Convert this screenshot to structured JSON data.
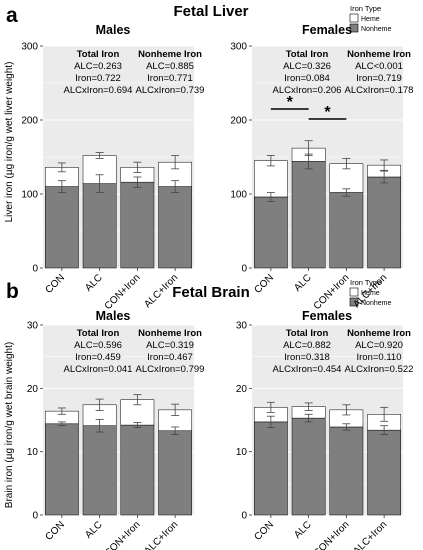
{
  "panels": [
    {
      "letter": "a",
      "title": "Fetal Liver",
      "legend": {
        "title": "Iron Type",
        "items": [
          "Heme",
          "Nonheme"
        ]
      },
      "ylabel": "Liver iron (µg iron/g wet liver weight)"
    },
    {
      "letter": "b",
      "title": "Fetal Brain",
      "legend": {
        "title": "Iron Type",
        "items": [
          "Heme",
          "Nonheme"
        ]
      },
      "ylabel": "Brain iron (µg iron/g wet brain weight)"
    }
  ],
  "colors": {
    "nonheme": "#7f7f7f",
    "heme": "#ffffff",
    "stroke": "#000000",
    "panel_bg": "#ebebeb",
    "grid": "#ffffff"
  },
  "chart_data": [
    {
      "type": "bar",
      "stacked": true,
      "organ": "Liver",
      "subtitle": "Males",
      "categories": [
        "CON",
        "ALC",
        "CON+Iron",
        "ALC+Iron"
      ],
      "series": [
        {
          "name": "Nonheme",
          "values": [
            110,
            114,
            116,
            110
          ],
          "errors": [
            8,
            12,
            7,
            8
          ]
        },
        {
          "name": "Heme",
          "values": [
            26,
            38,
            20,
            33
          ],
          "errors": [
            6,
            4,
            7,
            9
          ]
        }
      ],
      "ylim": [
        0,
        300
      ],
      "yticks": [
        "0",
        "100",
        "200",
        "300"
      ],
      "stats": [
        {
          "title": "Total Iron",
          "lines": [
            "ALC=0.263",
            "Iron=0.722",
            "ALCxIron=0.694"
          ]
        },
        {
          "title": "Nonheme Iron",
          "lines": [
            "ALC=0.885",
            "Iron=0.771",
            "ALCxIron=0.739"
          ]
        }
      ]
    },
    {
      "type": "bar",
      "stacked": true,
      "organ": "Liver",
      "subtitle": "Females",
      "categories": [
        "CON",
        "ALC",
        "CON+Iron",
        "ALC+Iron"
      ],
      "series": [
        {
          "name": "Nonheme",
          "values": [
            96,
            144,
            102,
            123
          ],
          "errors": [
            6,
            10,
            5,
            8
          ]
        },
        {
          "name": "Heme",
          "values": [
            49,
            18,
            39,
            16
          ],
          "errors": [
            7,
            10,
            7,
            7
          ]
        }
      ],
      "ylim": [
        0,
        300
      ],
      "yticks": [
        "0",
        "100",
        "200",
        "300"
      ],
      "stats": [
        {
          "title": "Total Iron",
          "lines": [
            "ALC=0.326",
            "Iron=0.084",
            "ALCxIron=0.206"
          ]
        },
        {
          "title": "Nonheme Iron",
          "lines": [
            "ALC<0.001",
            "Iron=0.719",
            "ALCxIron=0.178"
          ]
        }
      ],
      "annotations": [
        {
          "from": 0,
          "to": 1,
          "label": "*"
        },
        {
          "from": 1,
          "to": 2,
          "label": "*"
        }
      ]
    },
    {
      "type": "bar",
      "stacked": true,
      "organ": "Brain",
      "subtitle": "Males",
      "categories": [
        "CON",
        "ALC",
        "CON+Iron",
        "ALC+Iron"
      ],
      "series": [
        {
          "name": "Nonheme",
          "values": [
            14.4,
            14.1,
            14.2,
            13.3
          ],
          "errors": [
            0.3,
            1.0,
            0.4,
            0.6
          ]
        },
        {
          "name": "Heme",
          "values": [
            2.0,
            3.3,
            4.0,
            3.3
          ],
          "errors": [
            0.5,
            0.9,
            0.8,
            0.9
          ]
        }
      ],
      "ylim": [
        0,
        30
      ],
      "yticks": [
        "0",
        "10",
        "20",
        "30"
      ],
      "stats": [
        {
          "title": "Total Iron",
          "lines": [
            "ALC=0.596",
            "Iron=0.459",
            "ALCxIron=0.041"
          ]
        },
        {
          "title": "Nonheme Iron",
          "lines": [
            "ALC=0.319",
            "Iron=0.467",
            "ALCxIron=0.799"
          ]
        }
      ]
    },
    {
      "type": "bar",
      "stacked": true,
      "organ": "Brain",
      "subtitle": "Females",
      "categories": [
        "CON",
        "ALC",
        "CON+Iron",
        "ALC+Iron"
      ],
      "series": [
        {
          "name": "Nonheme",
          "values": [
            14.7,
            15.3,
            13.9,
            13.4
          ],
          "errors": [
            0.9,
            0.6,
            0.5,
            0.7
          ]
        },
        {
          "name": "Heme",
          "values": [
            2.3,
            1.8,
            2.7,
            2.5
          ],
          "errors": [
            0.8,
            0.6,
            0.8,
            1.1
          ]
        }
      ],
      "ylim": [
        0,
        30
      ],
      "yticks": [
        "0",
        "10",
        "20",
        "30"
      ],
      "stats": [
        {
          "title": "Total Iron",
          "lines": [
            "ALC=0.882",
            "Iron=0.318",
            "ALCxIron=0.454"
          ]
        },
        {
          "title": "Nonheme Iron",
          "lines": [
            "ALC=0.920",
            "Iron=0.110",
            "ALCxIron=0.522"
          ]
        }
      ]
    }
  ]
}
